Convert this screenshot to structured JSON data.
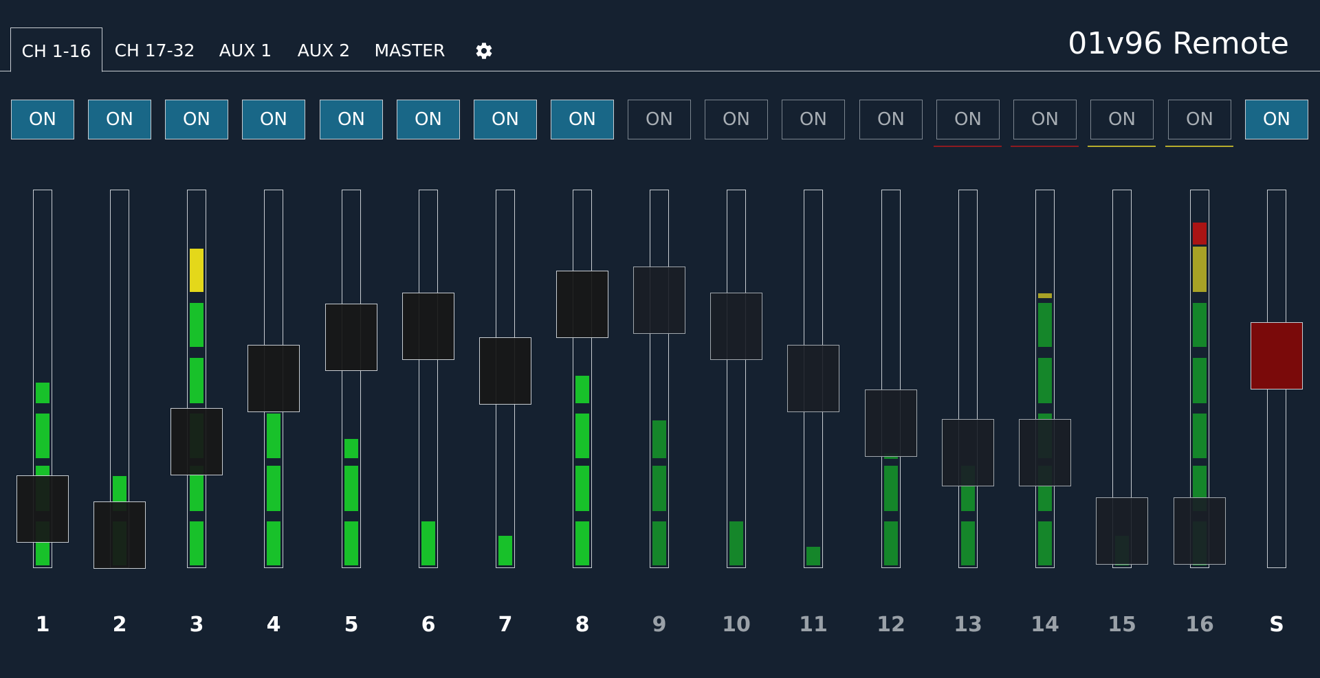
{
  "app_title": "01v96 Remote",
  "tabs": [
    {
      "label": "CH 1-16",
      "active": true
    },
    {
      "label": "CH 17-32",
      "active": false
    },
    {
      "label": "AUX 1",
      "active": false
    },
    {
      "label": "AUX 2",
      "active": false
    },
    {
      "label": "MASTER",
      "active": false
    }
  ],
  "settings_icon": "gear-icon",
  "colors": {
    "background": "#152130",
    "on_active": "#196787",
    "meter_green": "#18c12a",
    "meter_green_dim": "#15862a",
    "meter_yellow": "#e4d81a",
    "meter_yellow_dim": "#a8a226",
    "meter_red": "#aa1414",
    "fader_red": "#7a0a0a",
    "pair_red": "#8e1a20",
    "pair_yellow": "#b7ad2c"
  },
  "channels": [
    {
      "label": "1",
      "on": true,
      "on_label": "ON",
      "fader_level": 0.15,
      "meter_level": 0.49,
      "peak": 0.46,
      "pair": null
    },
    {
      "label": "2",
      "on": true,
      "on_label": "ON",
      "fader_level": 0.08,
      "meter_level": 0.24,
      "peak": null,
      "pair": null
    },
    {
      "label": "3",
      "on": true,
      "on_label": "ON",
      "fader_level": 0.33,
      "meter_level": 0.85,
      "peak": null,
      "pair": null
    },
    {
      "label": "4",
      "on": true,
      "on_label": "ON",
      "fader_level": 0.5,
      "meter_level": 0.41,
      "peak": null,
      "pair": null
    },
    {
      "label": "5",
      "on": true,
      "on_label": "ON",
      "fader_level": 0.61,
      "meter_level": 0.34,
      "peak": null,
      "pair": null
    },
    {
      "label": "6",
      "on": true,
      "on_label": "ON",
      "fader_level": 0.64,
      "meter_level": 0.12,
      "peak": null,
      "pair": null
    },
    {
      "label": "7",
      "on": true,
      "on_label": "ON",
      "fader_level": 0.52,
      "meter_level": 0.08,
      "peak": null,
      "pair": null
    },
    {
      "label": "8",
      "on": true,
      "on_label": "ON",
      "fader_level": 0.7,
      "meter_level": 0.51,
      "peak": null,
      "pair": null
    },
    {
      "label": "9",
      "on": false,
      "on_label": "ON",
      "fader_level": 0.71,
      "meter_level": 0.39,
      "peak": null,
      "pair": null
    },
    {
      "label": "10",
      "on": false,
      "on_label": "ON",
      "fader_level": 0.64,
      "meter_level": 0.12,
      "peak": null,
      "pair": null
    },
    {
      "label": "11",
      "on": false,
      "on_label": "ON",
      "fader_level": 0.5,
      "meter_level": 0.05,
      "peak": null,
      "pair": null
    },
    {
      "label": "12",
      "on": false,
      "on_label": "ON",
      "fader_level": 0.38,
      "meter_level": 0.3,
      "peak": 0.3,
      "pair": null
    },
    {
      "label": "13",
      "on": false,
      "on_label": "ON",
      "fader_level": 0.3,
      "meter_level": 0.27,
      "peak": null,
      "pair": "red"
    },
    {
      "label": "14",
      "on": false,
      "on_label": "ON",
      "fader_level": 0.3,
      "meter_level": 0.71,
      "peak": 0.73,
      "pair": "red"
    },
    {
      "label": "15",
      "on": false,
      "on_label": "ON",
      "fader_level": 0.09,
      "meter_level": 0.08,
      "peak": null,
      "pair": "yellow"
    },
    {
      "label": "16",
      "on": false,
      "on_label": "ON",
      "fader_level": 0.09,
      "meter_level": 0.86,
      "peak": 0.92,
      "pair": "yellow"
    }
  ],
  "stereo": {
    "label": "S",
    "on": true,
    "on_label": "ON",
    "fader_level": 0.56
  }
}
